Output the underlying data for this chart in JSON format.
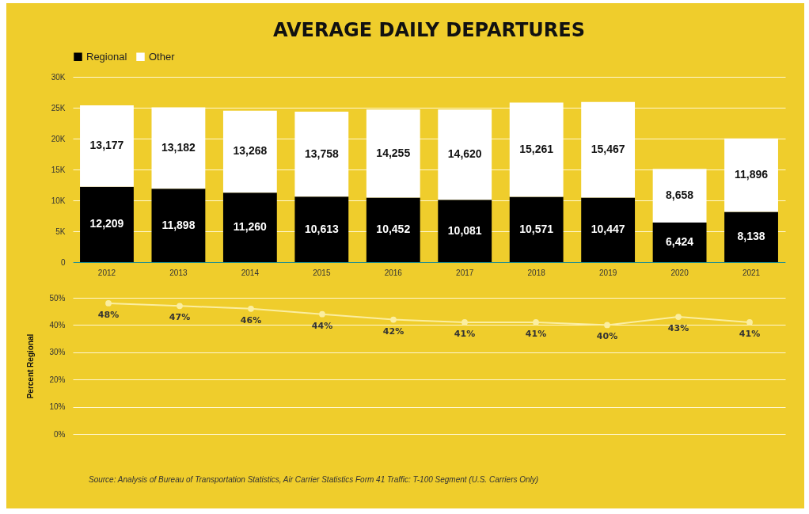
{
  "chart_data": [
    {
      "type": "bar",
      "title": "AVERAGE DAILY DEPARTURES",
      "stacked": true,
      "legend": "top",
      "grid": "y",
      "categories": [
        "2012",
        "2013",
        "2014",
        "2015",
        "2016",
        "2017",
        "2018",
        "2019",
        "2020",
        "2021"
      ],
      "series": [
        {
          "name": "Regional",
          "color": "#000000",
          "values": [
            12209,
            11898,
            11260,
            10613,
            10452,
            10081,
            10571,
            10447,
            6424,
            8138
          ],
          "value_labels": [
            "12,209",
            "11,898",
            "11,260",
            "10,613",
            "10,452",
            "10,081",
            "10,571",
            "10,447",
            "6,424",
            "8,138"
          ]
        },
        {
          "name": "Other",
          "color": "#ffffff",
          "values": [
            13177,
            13182,
            13268,
            13758,
            14255,
            14620,
            15261,
            15467,
            8658,
            11896
          ],
          "value_labels": [
            "13,177",
            "13,182",
            "13,268",
            "13,758",
            "14,255",
            "14,620",
            "15,261",
            "15,467",
            "8,658",
            "11,896"
          ]
        }
      ],
      "ylim": [
        0,
        30000
      ],
      "yticks": [
        0,
        {
          "value": 5000,
          "label": "5K"
        },
        {
          "value": 10000,
          "label": "10K"
        },
        {
          "value": 15000,
          "label": "15K"
        },
        {
          "value": 20000,
          "label": "20K"
        },
        {
          "value": 25000,
          "label": "25K"
        },
        {
          "value": 30000,
          "label": "30K"
        }
      ]
    },
    {
      "type": "line",
      "ylabel": "Percent Regional",
      "grid": "y",
      "marker": "circle",
      "tick_labels": "y",
      "categories": [
        "2012",
        "2013",
        "2014",
        "2015",
        "2016",
        "2017",
        "2018",
        "2019",
        "2020",
        "2021"
      ],
      "series": [
        {
          "color": "#fbeea0",
          "values": [
            48,
            47,
            46,
            44,
            42,
            41,
            41,
            40,
            43,
            41
          ],
          "value_labels": [
            "48%",
            "47%",
            "46%",
            "44%",
            "42%",
            "41%",
            "41%",
            "40%",
            "43%",
            "41%"
          ]
        }
      ],
      "ylim": [
        0,
        50
      ],
      "yticks": [
        {
          "value": 0,
          "label": "0%"
        },
        {
          "value": 10,
          "label": "10%"
        },
        {
          "value": 20,
          "label": "20%"
        },
        {
          "value": 30,
          "label": "30%"
        },
        {
          "value": 40,
          "label": "40%"
        },
        {
          "value": 50,
          "label": "50%"
        }
      ],
      "annotations": [
        "Source: Analysis of Bureau of Transportation Statistics, Air Carrier Statistics Form 41 Traffic: T-100 Segment (U.S. Carriers Only)"
      ]
    }
  ]
}
